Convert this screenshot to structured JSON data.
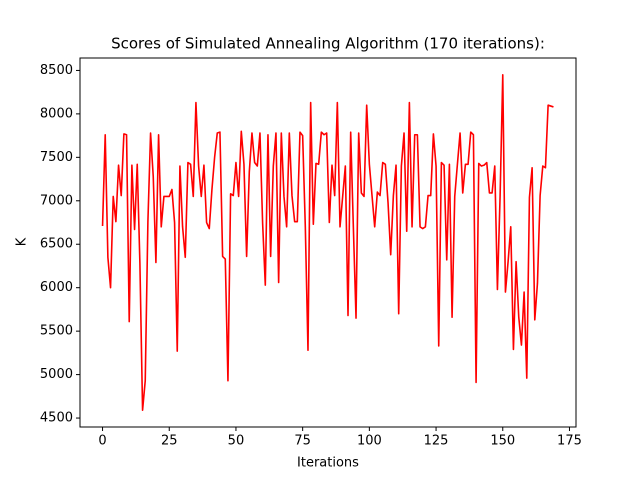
{
  "chart_data": {
    "type": "line",
    "title": "Scores of Simulated Annealing Algorithm (170 iterations):",
    "x_label": "Iterations",
    "y_label": "K",
    "color": "#ff0000",
    "x": [
      0,
      1,
      2,
      3,
      4,
      5,
      6,
      7,
      8,
      9,
      10,
      11,
      12,
      13,
      14,
      15,
      16,
      17,
      18,
      19,
      20,
      21,
      22,
      23,
      24,
      25,
      26,
      27,
      28,
      29,
      30,
      31,
      32,
      33,
      34,
      35,
      36,
      37,
      38,
      39,
      40,
      41,
      42,
      43,
      44,
      45,
      46,
      47,
      48,
      49,
      50,
      51,
      52,
      53,
      54,
      55,
      56,
      57,
      58,
      59,
      60,
      61,
      62,
      63,
      64,
      65,
      66,
      67,
      68,
      69,
      70,
      71,
      72,
      73,
      74,
      75,
      76,
      77,
      78,
      79,
      80,
      81,
      82,
      83,
      84,
      85,
      86,
      87,
      88,
      89,
      90,
      91,
      92,
      93,
      94,
      95,
      96,
      97,
      98,
      99,
      100,
      101,
      102,
      103,
      104,
      105,
      106,
      107,
      108,
      109,
      110,
      111,
      112,
      113,
      114,
      115,
      116,
      117,
      118,
      119,
      120,
      121,
      122,
      123,
      124,
      125,
      126,
      127,
      128,
      129,
      130,
      131,
      132,
      133,
      134,
      135,
      136,
      137,
      138,
      139,
      140,
      141,
      142,
      143,
      144,
      145,
      146,
      147,
      148,
      149,
      150,
      151,
      152,
      153,
      154,
      155,
      156,
      157,
      158,
      159,
      160,
      161,
      162,
      163,
      164,
      165,
      166,
      167,
      168,
      169
    ],
    "values": [
      6710,
      7760,
      6350,
      6000,
      7050,
      6760,
      7410,
      7060,
      7770,
      7760,
      5610,
      7410,
      6670,
      7420,
      6280,
      4590,
      4930,
      6760,
      7780,
      7280,
      6290,
      7760,
      6700,
      7050,
      7050,
      7050,
      7130,
      6750,
      5270,
      7400,
      6700,
      6350,
      7440,
      7420,
      7050,
      8130,
      7400,
      7050,
      7410,
      6750,
      6680,
      7130,
      7500,
      7780,
      7790,
      6360,
      6330,
      4930,
      7080,
      7060,
      7440,
      7050,
      7800,
      7420,
      6360,
      7330,
      7780,
      7440,
      7400,
      7780,
      6740,
      6030,
      7760,
      6360,
      7400,
      7780,
      6060,
      7780,
      7050,
      6700,
      7780,
      7060,
      6760,
      6760,
      7790,
      7750,
      6700,
      5280,
      8130,
      6730,
      7430,
      7420,
      7790,
      7760,
      7780,
      6750,
      7410,
      7060,
      8130,
      6700,
      7050,
      7400,
      5680,
      7790,
      6700,
      5650,
      7780,
      7090,
      7050,
      8100,
      7420,
      7060,
      6700,
      7100,
      7060,
      7440,
      7420,
      6980,
      6380,
      7060,
      7410,
      5700,
      7400,
      7780,
      6650,
      8130,
      6700,
      7760,
      7760,
      6700,
      6680,
      6700,
      7060,
      7060,
      7770,
      7400,
      5330,
      7440,
      7410,
      6320,
      7420,
      5660,
      7050,
      7420,
      7780,
      7090,
      7420,
      7420,
      7790,
      7760,
      4910,
      7430,
      7400,
      7410,
      7440,
      7090,
      7090,
      7400,
      5980,
      7050,
      8450,
      5950,
      6300,
      6700,
      5290,
      6300,
      5660,
      5340,
      5950,
      4960,
      7040,
      7380,
      5630,
      6050,
      7060,
      7400,
      7380,
      8100,
      8090,
      8080
    ],
    "xlim": [
      -8.45,
      177.45
    ],
    "xticks": [
      0,
      25,
      50,
      75,
      100,
      125,
      150,
      175
    ],
    "ylim": [
      4397,
      8643
    ],
    "yticks": [
      4500,
      5000,
      5500,
      6000,
      6500,
      7000,
      7500,
      8000,
      8500
    ]
  }
}
